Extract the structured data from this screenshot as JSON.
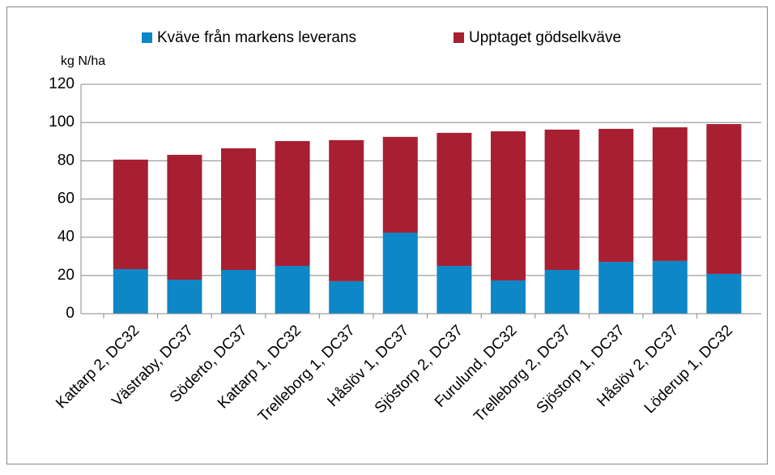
{
  "chart_data": {
    "type": "stacked_bar",
    "y_axis_label": "kg N/ha",
    "categories": [
      "Kattarp 2, DC32",
      "Västraby, DC37",
      "Söderto, DC37",
      "Kattarp 1, DC32",
      "Trelleborg 1, DC37",
      "Håslöv 1, DC37",
      "Sjöstorp 2, DC37",
      "Furulund, DC32",
      "Trelleborg 2, DC37",
      "Sjöstorp 1, DC37",
      "Håslöv 2, DC37",
      "Löderup 1, DC32"
    ],
    "series": [
      {
        "name": "Kväve från markens leverans",
        "color": "#0e87c6",
        "values": [
          23.3,
          17.8,
          22.9,
          25.0,
          17.0,
          42.4,
          25.0,
          17.4,
          22.9,
          27.1,
          27.6,
          20.8
        ]
      },
      {
        "name": "Upptaget gödselkväve",
        "color": "#a81f32",
        "values": [
          57.3,
          65.3,
          63.6,
          65.3,
          73.8,
          50.1,
          69.6,
          78.0,
          73.4,
          69.6,
          69.9,
          78.4
        ]
      }
    ],
    "ylim": [
      0,
      120
    ],
    "yticks": [
      0,
      20,
      40,
      60,
      80,
      100,
      120
    ],
    "grid": true,
    "legend": "top"
  }
}
